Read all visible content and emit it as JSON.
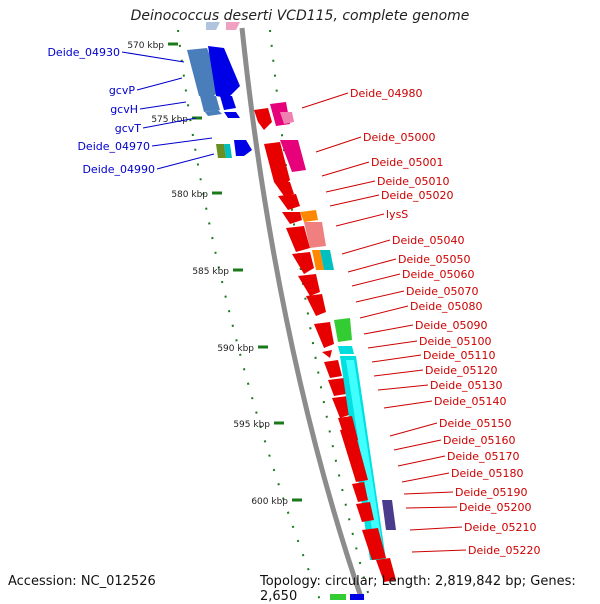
{
  "title": "Deinococcus deserti VCD115, complete genome",
  "footer": {
    "accession": "Accession: NC_012526",
    "summary": "Topology: circular; Length: 2,819,842 bp; Genes: 2,650"
  },
  "colors": {
    "label_left": "#0000cc",
    "label_right": "#cc0000",
    "ruler_ticks": "#1a7a1a",
    "backbone": "#8c8c8c"
  },
  "scale": {
    "ticks": [
      {
        "label": "570 kbp"
      },
      {
        "label": "575 kbp"
      },
      {
        "label": "580 kbp"
      },
      {
        "label": "585 kbp"
      },
      {
        "label": "590 kbp"
      },
      {
        "label": "595 kbp"
      },
      {
        "label": "600 kbp"
      }
    ]
  },
  "left_genes": [
    {
      "label": "Deide_04930"
    },
    {
      "label": "gcvP"
    },
    {
      "label": "gcvH"
    },
    {
      "label": "gcvT"
    },
    {
      "label": "Deide_04970"
    },
    {
      "label": "Deide_04990"
    }
  ],
  "right_genes": [
    {
      "label": "Deide_04980"
    },
    {
      "label": "Deide_05000"
    },
    {
      "label": "Deide_05001"
    },
    {
      "label": "Deide_05010"
    },
    {
      "label": "Deide_05020"
    },
    {
      "label": "lysS"
    },
    {
      "label": "Deide_05040"
    },
    {
      "label": "Deide_05050"
    },
    {
      "label": "Deide_05060"
    },
    {
      "label": "Deide_05070"
    },
    {
      "label": "Deide_05080"
    },
    {
      "label": "Deide_05090"
    },
    {
      "label": "Deide_05100"
    },
    {
      "label": "Deide_05110"
    },
    {
      "label": "Deide_05120"
    },
    {
      "label": "Deide_05130"
    },
    {
      "label": "Deide_05140"
    },
    {
      "label": "Deide_05150"
    },
    {
      "label": "Deide_05160"
    },
    {
      "label": "Deide_05170"
    },
    {
      "label": "Deide_05180"
    },
    {
      "label": "Deide_05190"
    },
    {
      "label": "Deide_05200"
    },
    {
      "label": "Deide_05210"
    },
    {
      "label": "Deide_05220"
    }
  ]
}
